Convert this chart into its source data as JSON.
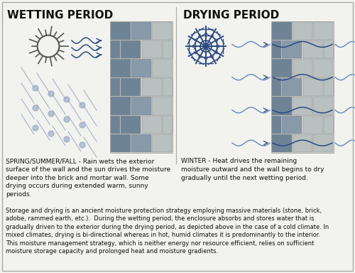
{
  "title_left": "WETTING PERIOD",
  "title_right": "DRYING PERIOD",
  "season_left": "SPRING/SUMMER/FALL - Rain wets the exterior\nsurface of the wall and the sun drives the moisture\ndeeper into the brick and mortar wall. Some\ndrying occurs during extended warm, sunny\nperiods.",
  "season_right": "WINTER - Heat drives the remaining\nmoisture outward and the wall begins to dry\ngradually until the next wetting period.",
  "bottom_text": "Storage and drying is an ancient moisture protection strategy employing massive materials (stone, brick,\nadobe, rammed earth, etc.).  During the wetting period, the enclosure absorbs and stores water that is\ngradually driven to the exterior during the drying period, as depicted above in the case of a cold climate. In\nmixed climates, drying is bi-directional whereas in hot, humid climates it is predominantly to the interior.\nThis moisture management strategy, which is neither energy nor resource efficient, relies on sufficient\nmoisture storage capacity and prolonged heat and moisture gradients.",
  "bg_color": "#f2f2ee",
  "brick_dark": "#6e8496",
  "brick_mid": "#8899aa",
  "brick_light": "#b8c0c0",
  "brick_lighter": "#c8d0d0",
  "mortar_color": "#d8d8d0",
  "text_color": "#111111",
  "blue_dark": "#2a4a80",
  "blue_light": "#6688bb",
  "rain_color": "#8899bb",
  "title_fontsize": 11,
  "body_fontsize": 6.2
}
